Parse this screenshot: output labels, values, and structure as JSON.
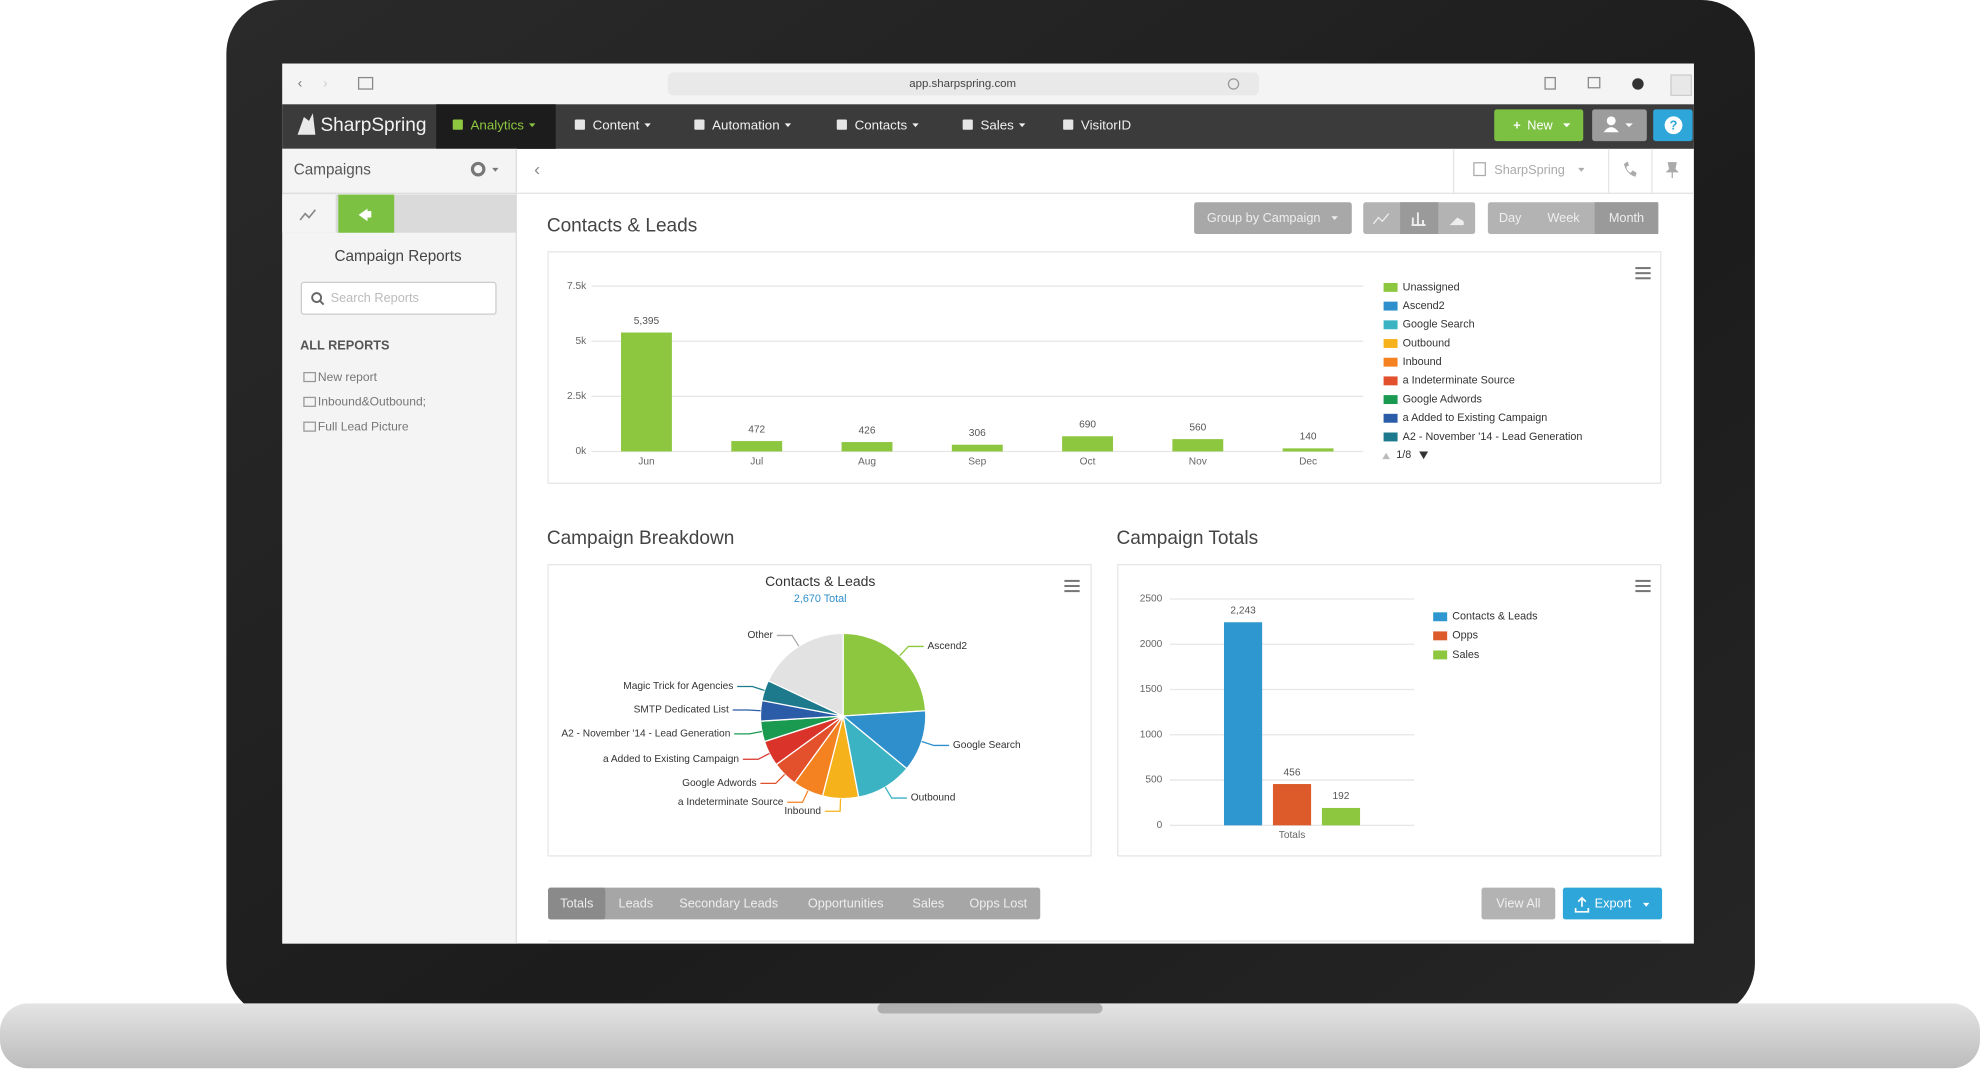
{
  "browser": {
    "url": "app.sharpspring.com"
  },
  "nav": {
    "brand": "SharpSpring",
    "items": [
      "Analytics",
      "Content",
      "Automation",
      "Contacts",
      "Sales",
      "VisitorID"
    ],
    "new_button": "New"
  },
  "sidebar": {
    "title": "Campaigns",
    "heading": "Campaign Reports",
    "search_placeholder": "Search Reports",
    "section": "ALL REPORTS",
    "reports": [
      "New report",
      "Inbound&Outbound;",
      "Full Lead Picture"
    ]
  },
  "toolbar": {
    "account": "SharpSpring",
    "group_by": "Group by Campaign",
    "periods": [
      "Day",
      "Week",
      "Month"
    ]
  },
  "contacts_chart": {
    "type": "bar",
    "title": "Contacts & Leads",
    "categories": [
      "Jun",
      "Jul",
      "Aug",
      "Sep",
      "Oct",
      "Nov",
      "Dec"
    ],
    "values": [
      5395,
      472,
      426,
      306,
      690,
      560,
      140
    ],
    "value_labels": [
      "5,395",
      "472",
      "426",
      "306",
      "690",
      "560",
      "140"
    ],
    "color": "#8dc63f",
    "ylim": [
      0,
      7500
    ],
    "yticks": [
      {
        "value": 0,
        "label": "0k"
      },
      {
        "value": 2500,
        "label": "2.5k"
      },
      {
        "value": 5000,
        "label": "5k"
      },
      {
        "value": 7500,
        "label": "7.5k"
      }
    ],
    "grid": true,
    "legend_entries": [
      {
        "name": "Unassigned",
        "color": "#8dc63f"
      },
      {
        "name": "Ascend2",
        "color": "#2e8fcc"
      },
      {
        "name": "Google Search",
        "color": "#3bb3c3"
      },
      {
        "name": "Outbound",
        "color": "#f5b21b"
      },
      {
        "name": "Inbound",
        "color": "#f58220"
      },
      {
        "name": "a Indeterminate Source",
        "color": "#e2502c"
      },
      {
        "name": "Google Adwords",
        "color": "#1a9a50"
      },
      {
        "name": "a Added to Existing Campaign",
        "color": "#2a5ca8"
      },
      {
        "name": "A2 - November '14 - Lead Generation",
        "color": "#1d7a8c"
      }
    ],
    "legend_pager": "1/8"
  },
  "breakdown": {
    "heading": "Campaign Breakdown",
    "chart": {
      "type": "pie",
      "title": "Contacts & Leads",
      "subtitle": "2,670 Total",
      "categories": [
        "Ascend2",
        "Google Search",
        "Outbound",
        "Inbound",
        "a Indeterminate Source",
        "Google Adwords",
        "a Added to Existing Campaign",
        "A2 - November '14 - Lead Generation",
        "SMTP Dedicated List",
        "Magic Trick for Agencies",
        "Other"
      ],
      "values": [
        24,
        12,
        11,
        7,
        6,
        5,
        5,
        4,
        4,
        4,
        18
      ],
      "colors": [
        "#8dc63f",
        "#2e8fcc",
        "#3bb3c3",
        "#f5b21b",
        "#f58220",
        "#e2502c",
        "#d9332a",
        "#1a9a50",
        "#2a5ca8",
        "#1d7a8c",
        "#e2e2e2"
      ]
    }
  },
  "totals": {
    "heading": "Campaign Totals",
    "chart": {
      "type": "bar",
      "categories": [
        "Totals"
      ],
      "series": [
        {
          "name": "Contacts & Leads",
          "color": "#2e97cf",
          "values": [
            2243
          ],
          "value_labels": [
            "2,243"
          ]
        },
        {
          "name": "Opps",
          "color": "#dd5a2b",
          "values": [
            456
          ]
        },
        {
          "name": "Sales",
          "color": "#8dc63f",
          "values": [
            192
          ]
        }
      ],
      "ylim": [
        0,
        2500
      ],
      "yticks": [
        0,
        500,
        1000,
        1500,
        2000,
        2500
      ],
      "grid": true
    }
  },
  "tabs": [
    "Totals",
    "Leads",
    "Secondary Leads",
    "Opportunities",
    "Sales",
    "Opps Lost"
  ],
  "buttons": {
    "view_all": "View All",
    "export": "Export"
  }
}
